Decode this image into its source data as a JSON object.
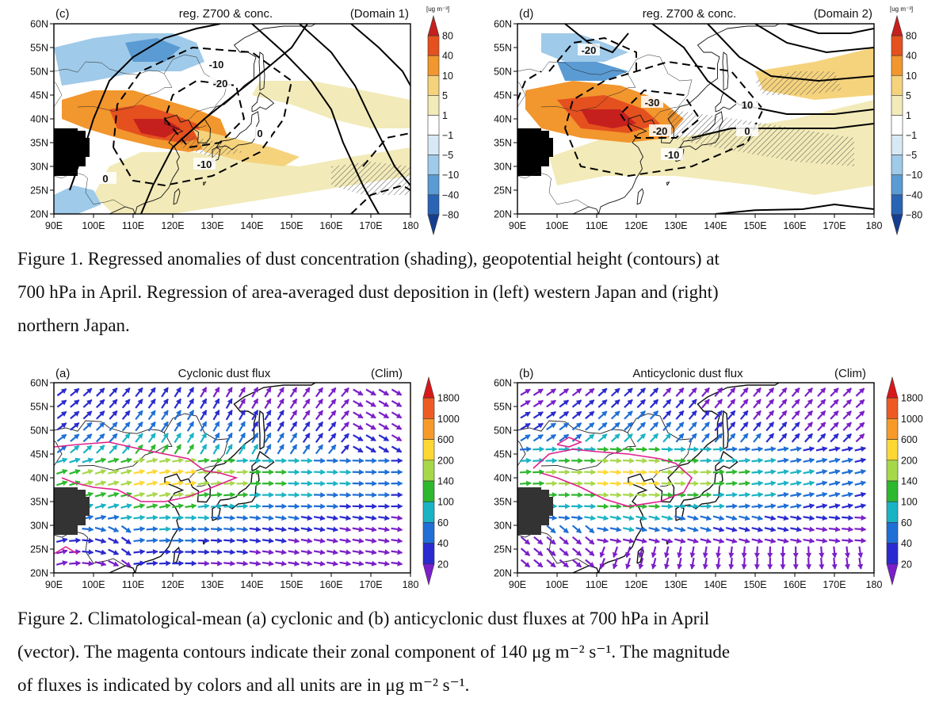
{
  "figure1": {
    "panels": [
      {
        "letter": "(c)",
        "title": "reg. Z700 & conc.",
        "tag": "(Domain 1)",
        "contour_labels": [
          "-10",
          "-20",
          "0",
          "-10",
          "0"
        ]
      },
      {
        "letter": "(d)",
        "title": "reg. Z700 & conc.",
        "tag": "(Domain 2)",
        "contour_labels": [
          "-20",
          "-30",
          "-20",
          "-10",
          "10",
          "0"
        ]
      }
    ],
    "lat_ticks": [
      "60N",
      "55N",
      "50N",
      "45N",
      "40N",
      "35N",
      "30N",
      "25N",
      "20N"
    ],
    "lon_ticks": [
      "90E",
      "100E",
      "110E",
      "120E",
      "130E",
      "140E",
      "150E",
      "160E",
      "170E",
      "180"
    ],
    "colorbar": {
      "unit": "[ug m⁻³]",
      "labels": [
        "80",
        "40",
        "10",
        "5",
        "1",
        "−1",
        "−5",
        "−10",
        "−40",
        "−80"
      ],
      "colors": [
        "#c6201e",
        "#e5501f",
        "#f2962e",
        "#f5d37d",
        "#f2eab8",
        "#ffffff",
        "#d7e9f5",
        "#9fcae9",
        "#5b9bd3",
        "#2a64b4",
        "#163e8f"
      ]
    },
    "caption_lines": [
      "Figure 1. Regressed anomalies of dust concentration (shading), geopotential height (contours) at",
      "700 hPa in April. Regression of area-averaged dust deposition in (left) western Japan and (right)",
      "northern Japan."
    ]
  },
  "figure2": {
    "panels": [
      {
        "letter": "(a)",
        "title": "Cyclonic dust flux",
        "tag": "(Clim)"
      },
      {
        "letter": "(b)",
        "title": "Anticyclonic dust flux",
        "tag": "(Clim)"
      }
    ],
    "colorbar": {
      "labels": [
        "1800",
        "1000",
        "600",
        "200",
        "140",
        "100",
        "60",
        "40",
        "20"
      ],
      "colors": [
        "#d7191c",
        "#ee5a24",
        "#f79a2a",
        "#fdd835",
        "#a6d84a",
        "#2eb82e",
        "#1ab3c4",
        "#1f6fd6",
        "#2a2ad0",
        "#7a1fc9"
      ]
    },
    "caption_lines": [
      "Figure 2. Climatological-mean (a) cyclonic and (b) anticyclonic dust fluxes at 700 hPa in April",
      "(vector). The magenta contours indicate their zonal component of 140 μg m⁻² s⁻¹. The magnitude",
      "of fluxes is indicated by colors and all units are in μg m⁻² s⁻¹."
    ]
  }
}
